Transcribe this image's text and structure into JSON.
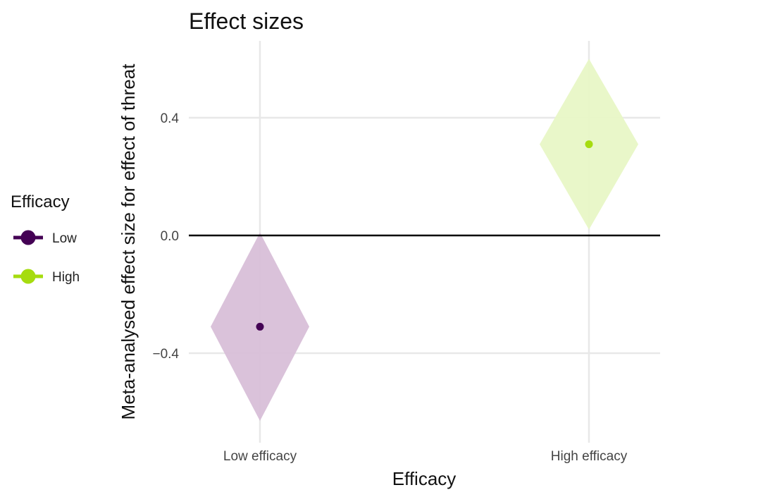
{
  "chart_data": {
    "type": "forest-diamond",
    "title": "Effect sizes",
    "xlabel": "Efficacy",
    "ylabel": "Meta-analysed effect size for effect of threat",
    "categories": [
      "Low efficacy",
      "High efficacy"
    ],
    "ylim": [
      -0.7,
      0.66
    ],
    "yticks": [
      -0.4,
      0.0,
      0.4
    ],
    "ytick_labels": [
      "−0.4",
      "0.0",
      "0.4"
    ],
    "reference_line": 0.0,
    "grid": true,
    "series": [
      {
        "name": "Low",
        "category": "Low efficacy",
        "estimate": -0.31,
        "ci_low": -0.63,
        "ci_high": 0.01,
        "color": "#440154",
        "fill": "#d8bfd8"
      },
      {
        "name": "High",
        "category": "High efficacy",
        "estimate": 0.31,
        "ci_low": 0.02,
        "ci_high": 0.6,
        "color": "#a6dc0f",
        "fill": "#e8f7c6"
      }
    ],
    "legend": {
      "title": "Efficacy",
      "position": "left",
      "items": [
        {
          "label": "Low",
          "color": "#440154"
        },
        {
          "label": "High",
          "color": "#a6dc0f"
        }
      ]
    }
  }
}
